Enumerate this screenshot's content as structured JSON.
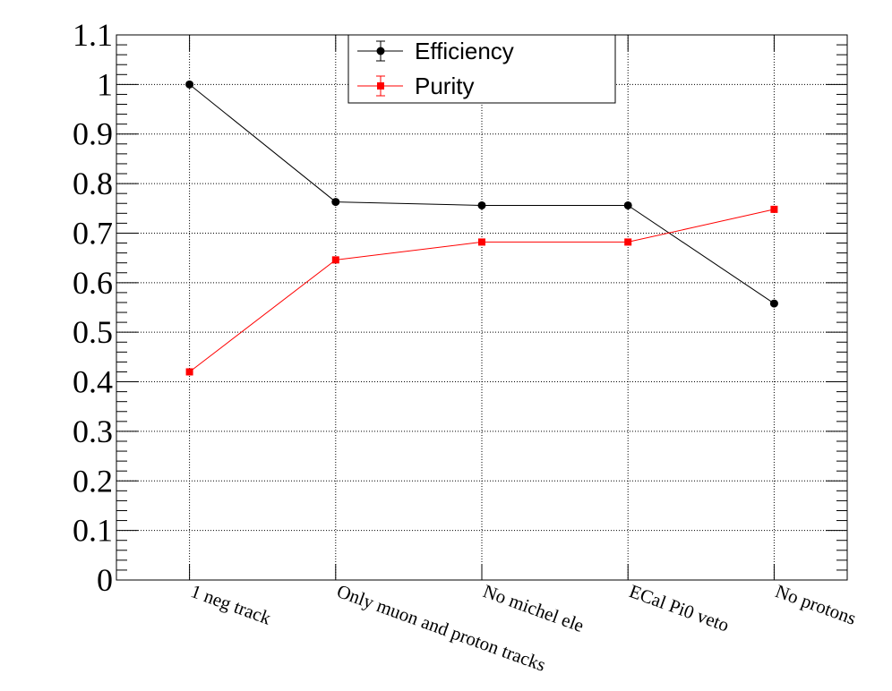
{
  "chart_data": {
    "type": "line",
    "categories": [
      "1 neg track",
      "Only muon and proton tracks",
      "No michel ele",
      "ECal Pi0 veto",
      "No protons"
    ],
    "series": [
      {
        "name": "Efficiency",
        "values": [
          1.0,
          0.763,
          0.756,
          0.756,
          0.558
        ],
        "color": "#000000",
        "marker": "circle"
      },
      {
        "name": "Purity",
        "values": [
          0.42,
          0.646,
          0.682,
          0.682,
          0.748
        ],
        "color": "#ff0000",
        "marker": "square"
      }
    ],
    "yticks": [
      "0",
      "0.1",
      "0.2",
      "0.3",
      "0.4",
      "0.5",
      "0.6",
      "0.7",
      "0.8",
      "0.9",
      "1",
      "1.1"
    ],
    "ylim": [
      0,
      1.1
    ],
    "grid": true,
    "legend_position": "top-center"
  }
}
